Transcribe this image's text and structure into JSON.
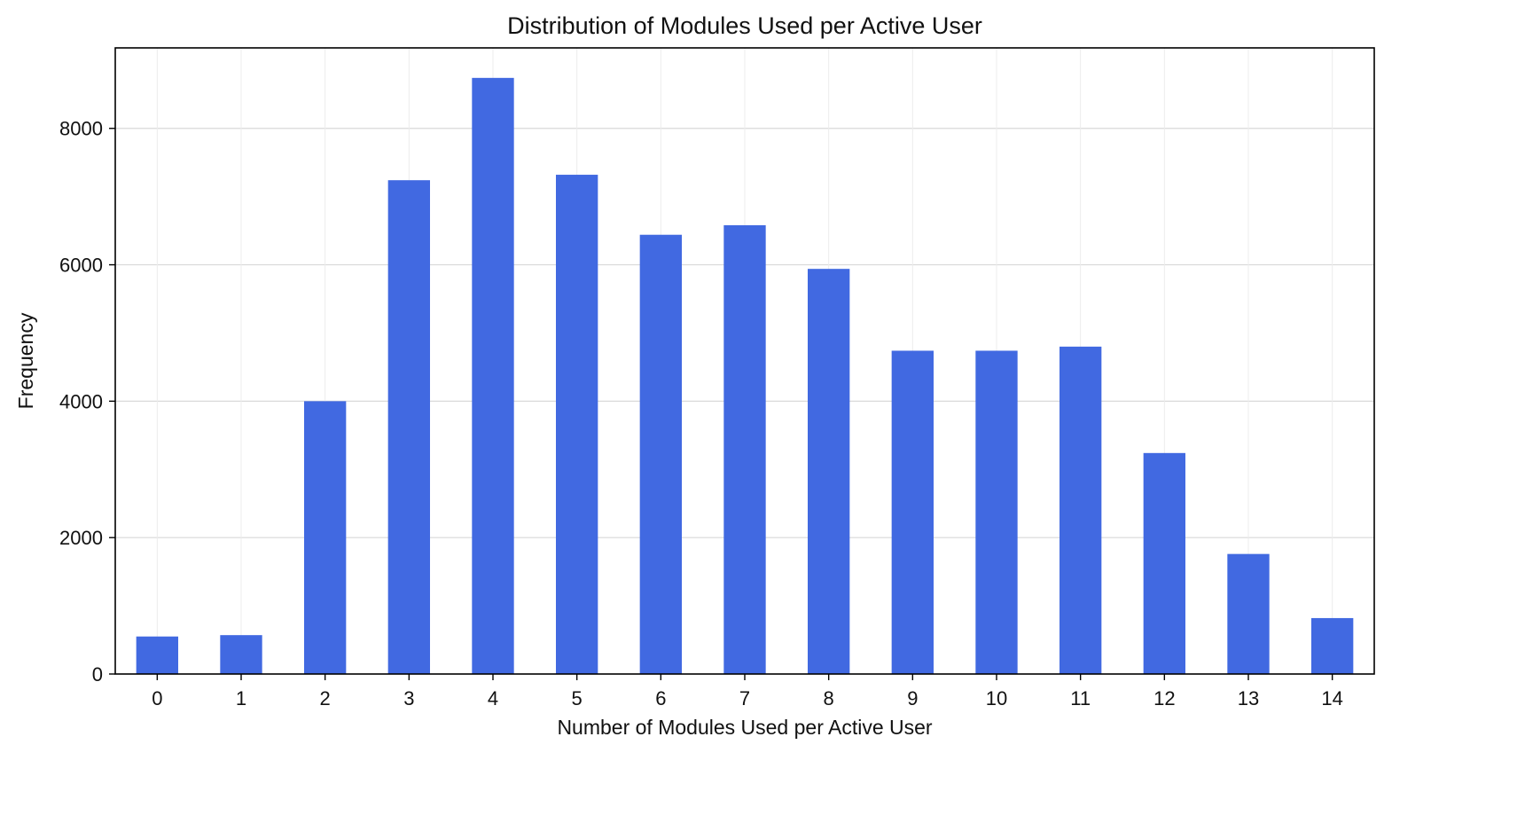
{
  "chart_data": {
    "type": "bar",
    "title": "Distribution of Modules Used per Active User",
    "xlabel": "Number of Modules Used per Active User",
    "ylabel": "Frequency",
    "categories": [
      "0",
      "1",
      "2",
      "3",
      "4",
      "5",
      "6",
      "7",
      "8",
      "9",
      "10",
      "11",
      "12",
      "13",
      "14"
    ],
    "values": [
      550,
      570,
      4000,
      7240,
      8740,
      7320,
      6440,
      6580,
      5940,
      4740,
      4740,
      4800,
      3240,
      1760,
      820
    ],
    "ylim": [
      0,
      9180
    ],
    "yticks": [
      0,
      2000,
      4000,
      6000,
      8000
    ],
    "grid": true,
    "bar_color": "#4169e1",
    "grid_color": "#d9d9d9"
  }
}
